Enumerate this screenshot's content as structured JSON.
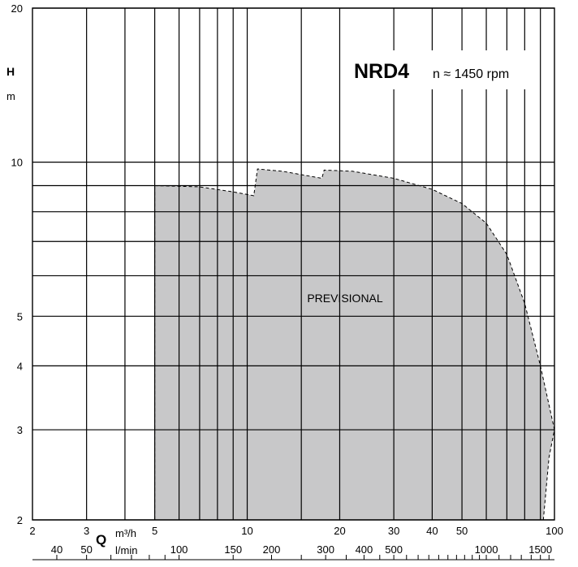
{
  "chart_data": {
    "type": "area",
    "title": "NRD4",
    "subtitle": "n ≈ 1450 rpm",
    "annotation": "PREVISIONAL",
    "y_axis": {
      "symbol": "H",
      "unit": "m",
      "scale": "log",
      "range": [
        2,
        20
      ],
      "ticks": [
        2,
        3,
        4,
        5,
        10,
        20
      ],
      "gridlines": [
        2,
        3,
        4,
        5,
        6,
        7,
        8,
        9,
        10,
        20
      ]
    },
    "x_axis": {
      "symbol": "Q",
      "unit_primary": "m³/h",
      "unit_secondary": "l/min",
      "scale": "log",
      "range": [
        2,
        100
      ],
      "ticks_primary": [
        2,
        3,
        5,
        10,
        20,
        30,
        40,
        50,
        100
      ],
      "ticks_secondary": [
        40,
        50,
        100,
        150,
        200,
        300,
        400,
        500,
        1000,
        1500
      ],
      "gridlines": [
        3,
        4,
        5,
        6,
        7,
        8,
        9,
        10,
        15,
        20,
        30,
        40,
        50,
        60,
        70,
        80,
        90
      ]
    },
    "grid": true,
    "operating_area": {
      "fill_color": "#c8c8c9",
      "upper_boundary": [
        {
          "q": 5,
          "h": 9
        },
        {
          "q": 7,
          "h": 8.95
        },
        {
          "q": 9,
          "h": 8.75
        },
        {
          "q": 10.5,
          "h": 8.6
        },
        {
          "q": 10.8,
          "h": 9.7
        },
        {
          "q": 13,
          "h": 9.6
        },
        {
          "q": 17.5,
          "h": 9.3
        },
        {
          "q": 17.8,
          "h": 9.65
        },
        {
          "q": 22,
          "h": 9.6
        },
        {
          "q": 30,
          "h": 9.3
        },
        {
          "q": 40,
          "h": 8.85
        },
        {
          "q": 50,
          "h": 8.3
        },
        {
          "q": 60,
          "h": 7.6
        },
        {
          "q": 70,
          "h": 6.6
        },
        {
          "q": 80,
          "h": 5.3
        },
        {
          "q": 90,
          "h": 4.0
        },
        {
          "q": 100,
          "h": 3.0
        }
      ],
      "lower_boundary": [
        {
          "q": 100,
          "h": 3.0
        },
        {
          "q": 96,
          "h": 2.65
        },
        {
          "q": 92,
          "h": 2.0
        },
        {
          "q": 5,
          "h": 2.0
        }
      ]
    }
  }
}
